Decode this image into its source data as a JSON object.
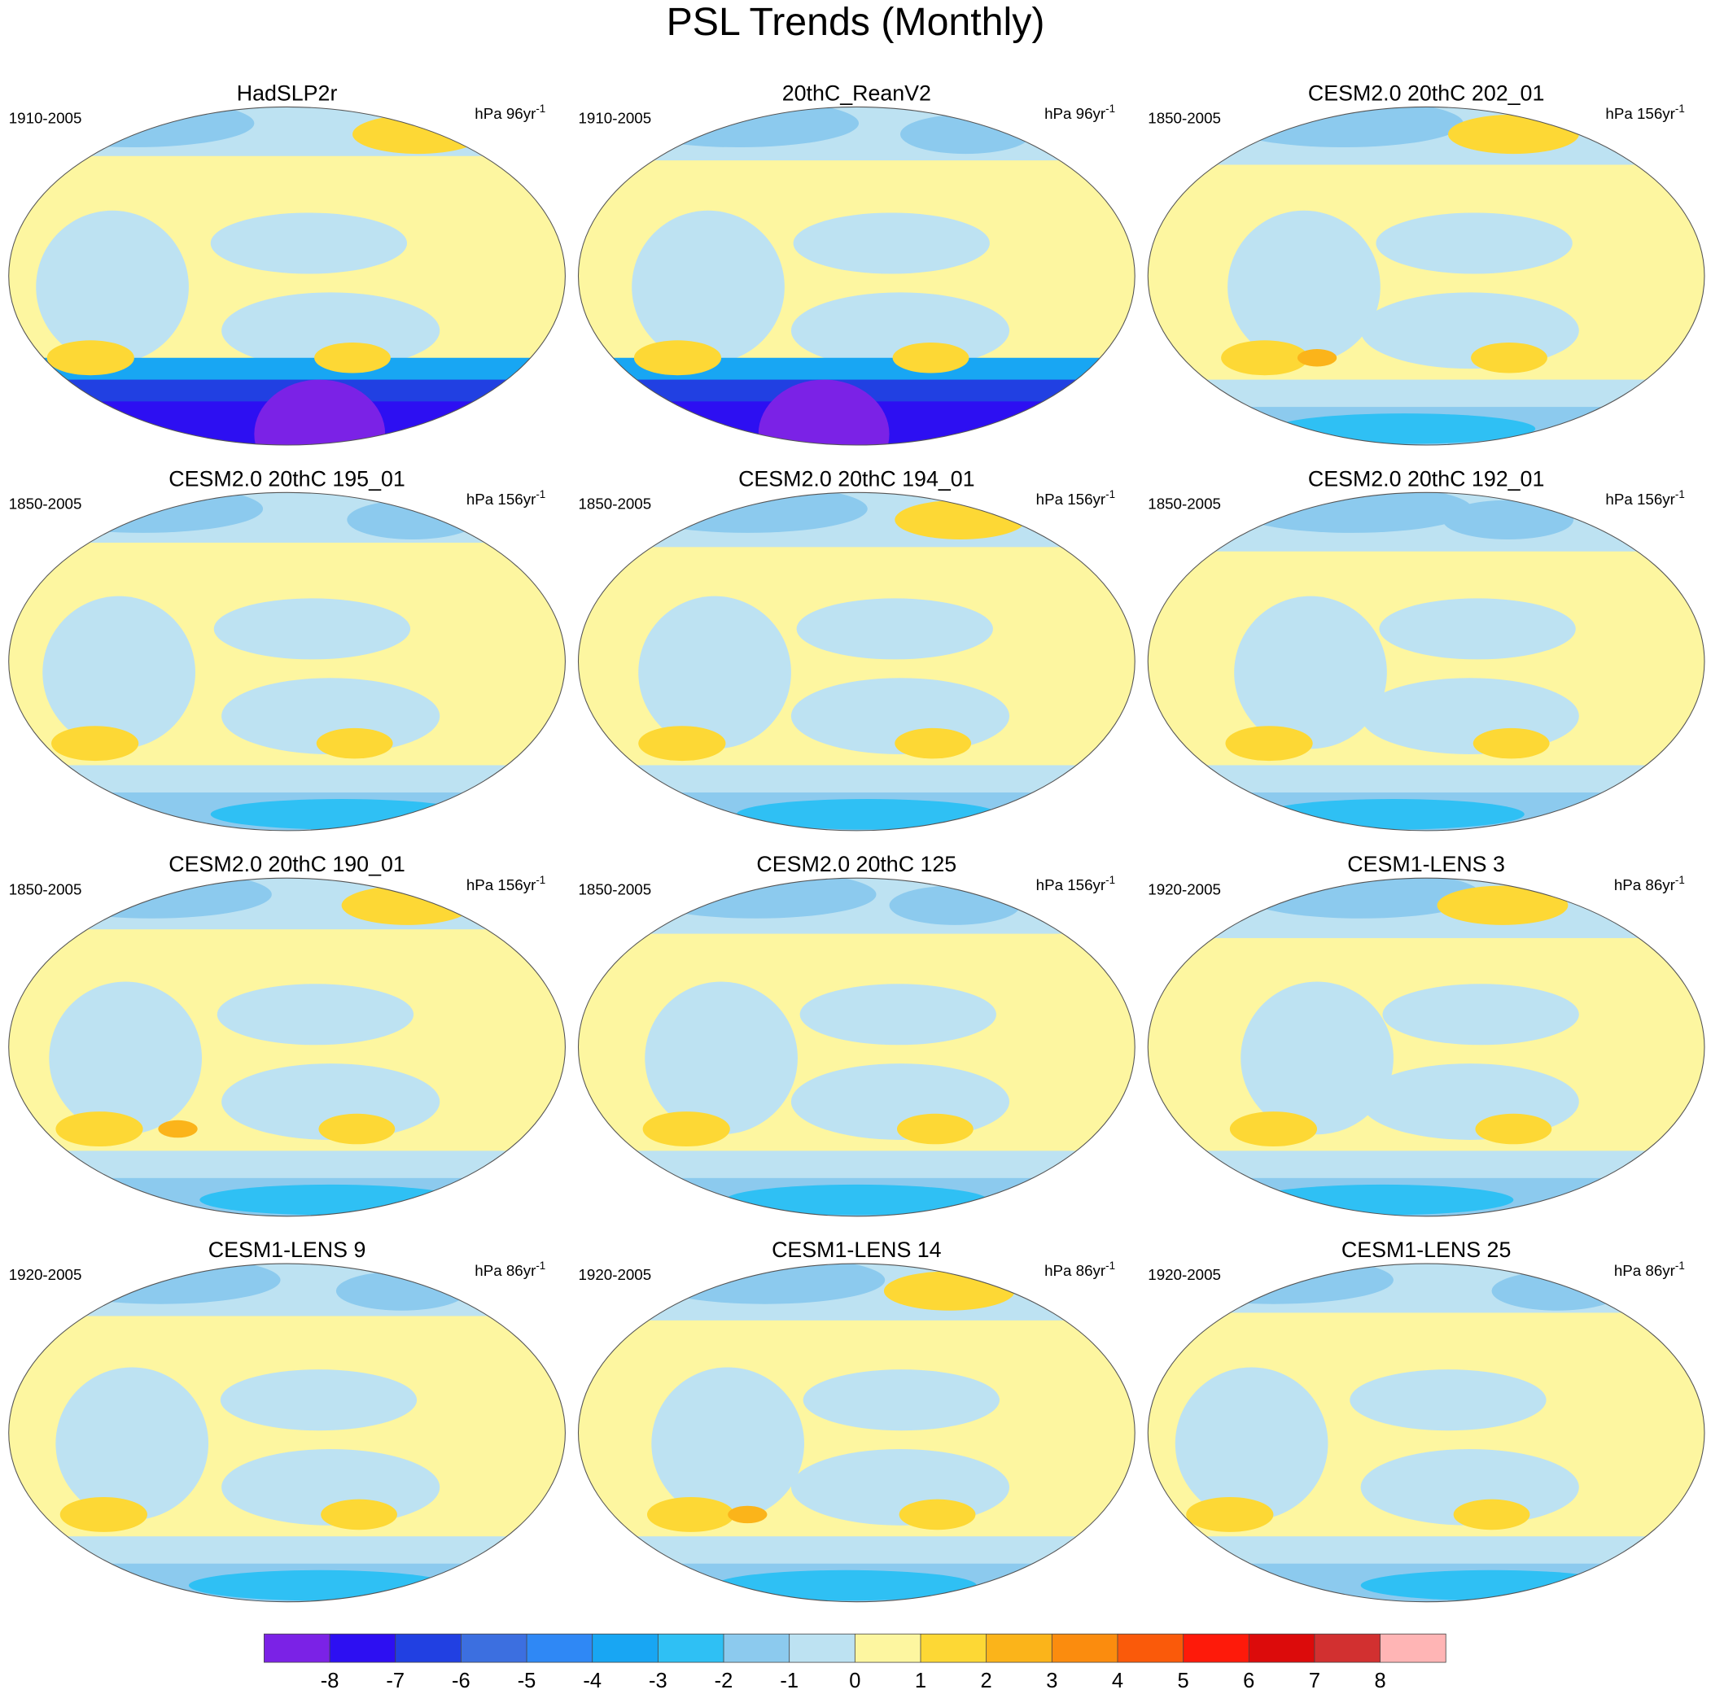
{
  "title": "PSL Trends (Monthly)",
  "panels": [
    {
      "title": "HadSLP2r",
      "period": "1910-2005",
      "units": {
        "text": "hPa 96yr",
        "sup": "-1"
      }
    },
    {
      "title": "20thC_ReanV2",
      "period": "1910-2005",
      "units": {
        "text": "hPa 96yr",
        "sup": "-1"
      }
    },
    {
      "title": "CESM2.0 20thC 202_01",
      "period": "1850-2005",
      "units": {
        "text": "hPa 156yr",
        "sup": "-1"
      }
    },
    {
      "title": "CESM2.0 20thC 195_01",
      "period": "1850-2005",
      "units": {
        "text": "hPa 156yr",
        "sup": "-1"
      }
    },
    {
      "title": "CESM2.0 20thC 194_01",
      "period": "1850-2005",
      "units": {
        "text": "hPa 156yr",
        "sup": "-1"
      }
    },
    {
      "title": "CESM2.0 20thC 192_01",
      "period": "1850-2005",
      "units": {
        "text": "hPa 156yr",
        "sup": "-1"
      }
    },
    {
      "title": "CESM2.0 20thC 190_01",
      "period": "1850-2005",
      "units": {
        "text": "hPa 156yr",
        "sup": "-1"
      }
    },
    {
      "title": "CESM2.0 20thC 125",
      "period": "1850-2005",
      "units": {
        "text": "hPa 156yr",
        "sup": "-1"
      }
    },
    {
      "title": "CESM1-LENS 3",
      "period": "1920-2005",
      "units": {
        "text": "hPa 86yr",
        "sup": "-1"
      }
    },
    {
      "title": "CESM1-LENS 9",
      "period": "1920-2005",
      "units": {
        "text": "hPa 86yr",
        "sup": "-1"
      }
    },
    {
      "title": "CESM1-LENS 14",
      "period": "1920-2005",
      "units": {
        "text": "hPa 86yr",
        "sup": "-1"
      }
    },
    {
      "title": "CESM1-LENS 25",
      "period": "1920-2005",
      "units": {
        "text": "hPa 86yr",
        "sup": "-1"
      }
    }
  ],
  "colorbar": {
    "colors": [
      "#7b22e6",
      "#2d0ff2",
      "#2140e2",
      "#3c6fe0",
      "#2f88f5",
      "#18a6f3",
      "#2fc0f4",
      "#8ccaee",
      "#bde2f2",
      "#fdf6a0",
      "#fdd835",
      "#fbb41a",
      "#fb8c0e",
      "#fa5a0a",
      "#fe1a0a",
      "#dc0b0b",
      "#d23030",
      "#ffb5b5"
    ],
    "ticks": [
      -8,
      -7,
      -6,
      -5,
      -4,
      -3,
      -2,
      -1,
      0,
      1,
      2,
      3,
      4,
      5,
      6,
      7,
      8
    ]
  }
}
